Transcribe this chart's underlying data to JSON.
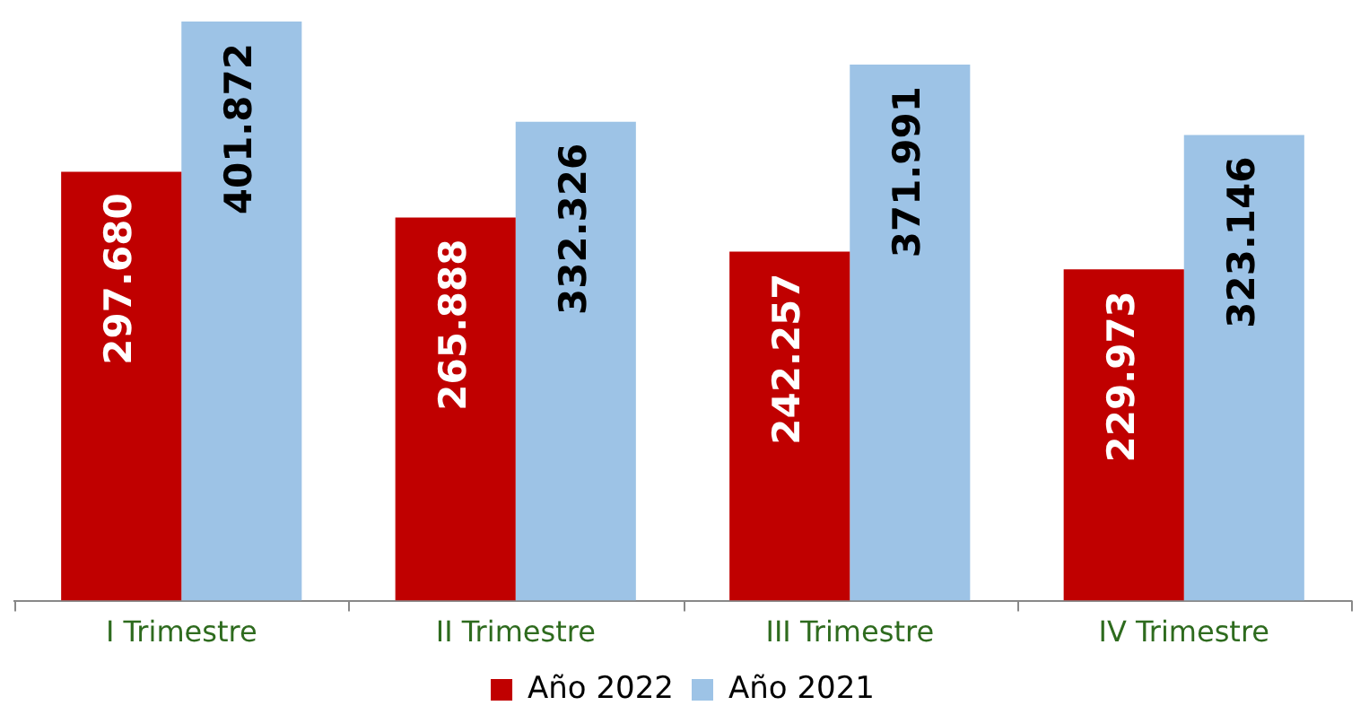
{
  "chart_data": {
    "type": "bar",
    "categories": [
      "I Trimestre",
      "II Trimestre",
      "III Trimestre",
      "IV Trimestre"
    ],
    "series": [
      {
        "name": "Año 2022",
        "color": "#c00000",
        "values": [
          297680,
          265888,
          242257,
          229973
        ],
        "value_labels": [
          "297.680",
          "265.888",
          "242.257",
          "229.973"
        ]
      },
      {
        "name": "Año 2021",
        "color": "#9dc3e6",
        "values": [
          401872,
          332326,
          371991,
          323146
        ],
        "value_labels": [
          "401.872",
          "332.326",
          "371.991",
          "323.146"
        ]
      }
    ],
    "legend": "bottom",
    "grid": false,
    "tick_labels": "x"
  }
}
